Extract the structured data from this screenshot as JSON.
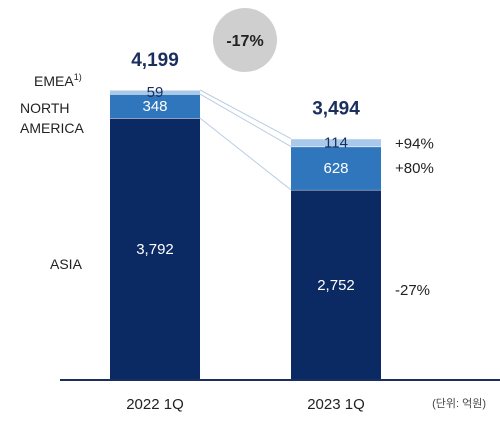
{
  "chart_data": {
    "type": "bar",
    "stacked": true,
    "categories": [
      "2022 1Q",
      "2023 1Q"
    ],
    "series": [
      {
        "name": "ASIA",
        "values": [
          3792,
          2752
        ],
        "color": "#0b2a63",
        "growth": "-27%"
      },
      {
        "name": "NORTH AMERICA",
        "values": [
          348,
          628
        ],
        "color": "#2f76bd",
        "growth": "+80%"
      },
      {
        "name": "EMEA",
        "values": [
          59,
          114
        ],
        "color": "#a9c9ea",
        "growth": "+94%"
      }
    ],
    "series_labels": {
      "emea": "EMEA",
      "emea_superscript": "1)",
      "north_america_line1": "NORTH",
      "north_america_line2": "AMERICA",
      "asia": "ASIA"
    },
    "totals": [
      "4,199",
      "3,494"
    ],
    "value_labels": {
      "asia": [
        "3,792",
        "2,752"
      ],
      "north_america": [
        "348",
        "628"
      ],
      "emea": [
        "59",
        "114"
      ]
    },
    "change_badge": "-17%",
    "unit_note": "(단위: 억원)",
    "ylim": [
      0,
      4199
    ]
  }
}
